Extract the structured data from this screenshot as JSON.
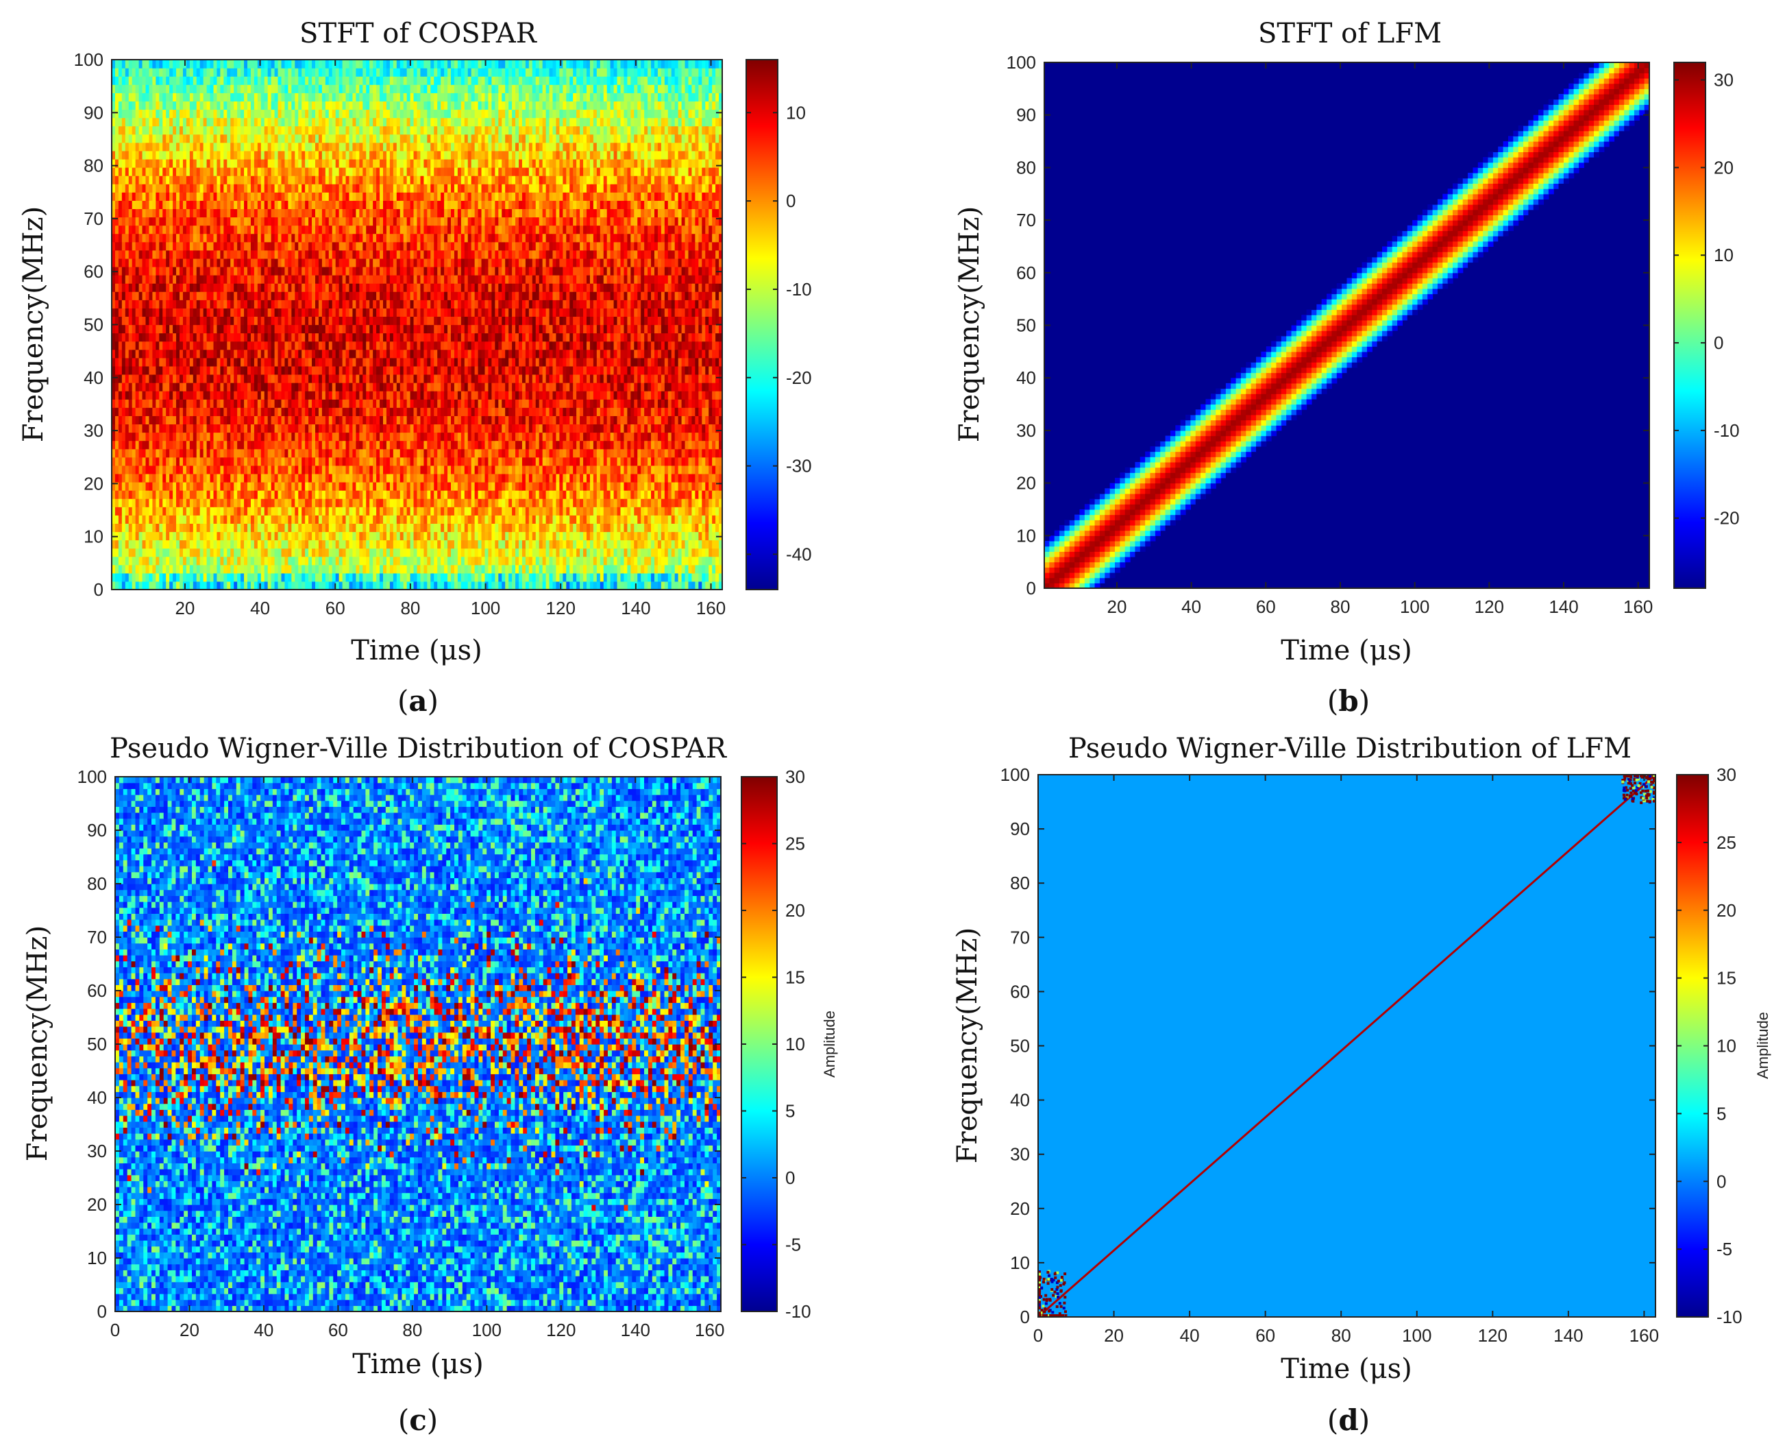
{
  "figure": {
    "panels": [
      "(a)",
      "(b)",
      "(c)",
      "(d)"
    ],
    "panel_letters": [
      "a",
      "b",
      "c",
      "d"
    ]
  },
  "chart_data": [
    {
      "id": "a",
      "type": "heatmap",
      "title": "STFT of COSPAR",
      "xlabel": "Time (μs)",
      "ylabel": "Frequency(MHz)",
      "xlim": [
        0.5,
        163
      ],
      "ylim": [
        0,
        100
      ],
      "xticks": [
        20,
        40,
        60,
        80,
        100,
        120,
        140,
        160
      ],
      "yticks": [
        0,
        10,
        20,
        30,
        40,
        50,
        60,
        70,
        80,
        90,
        100
      ],
      "colorbar": {
        "min": -44,
        "max": 16,
        "ticks": [
          -40,
          -30,
          -20,
          -10,
          0,
          10
        ],
        "label": ""
      },
      "pattern": "noise band centered near 45 MHz, ~10 dB peak, falling to ~-20 dB at 0 and 100 MHz"
    },
    {
      "id": "b",
      "type": "heatmap",
      "title": "STFT of LFM",
      "xlabel": "Time (μs)",
      "ylabel": "Frequency(MHz)",
      "xlim": [
        0.5,
        163
      ],
      "ylim": [
        0,
        100
      ],
      "xticks": [
        20,
        40,
        60,
        80,
        100,
        120,
        140,
        160
      ],
      "yticks": [
        0,
        10,
        20,
        30,
        40,
        50,
        60,
        70,
        80,
        90,
        100
      ],
      "colorbar": {
        "min": -28,
        "max": 32,
        "ticks": [
          -20,
          -10,
          0,
          10,
          20,
          30
        ],
        "label": ""
      },
      "pattern": "linear chirp from 0 MHz at t=0 to 100 MHz at t=163 μs, peak ~30 dB, background -28 dB"
    },
    {
      "id": "c",
      "type": "heatmap",
      "title": "Pseudo Wigner-Ville Distribution of COSPAR",
      "xlabel": "Time (μs)",
      "ylabel": "Frequency(MHz)",
      "xlim": [
        0,
        163
      ],
      "ylim": [
        0,
        100
      ],
      "xticks": [
        0,
        20,
        40,
        60,
        80,
        100,
        120,
        140,
        160
      ],
      "yticks": [
        0,
        10,
        20,
        30,
        40,
        50,
        60,
        70,
        80,
        90,
        100
      ],
      "colorbar": {
        "min": -10,
        "max": 30,
        "ticks": [
          -10,
          -5,
          0,
          5,
          10,
          15,
          20,
          25,
          30
        ],
        "label": "Amplitude"
      },
      "pattern": "speckled texture around 0 amplitude with high-amplitude clusters at 35-65 MHz"
    },
    {
      "id": "d",
      "type": "heatmap",
      "title": "Pseudo Wigner-Ville Distribution of LFM",
      "xlabel": "Time (μs)",
      "ylabel": "Frequency(MHz)",
      "xlim": [
        0,
        163
      ],
      "ylim": [
        0,
        100
      ],
      "xticks": [
        0,
        20,
        40,
        60,
        80,
        100,
        120,
        140,
        160
      ],
      "yticks": [
        0,
        10,
        20,
        30,
        40,
        50,
        60,
        70,
        80,
        90,
        100
      ],
      "colorbar": {
        "min": -10,
        "max": 30,
        "ticks": [
          -10,
          -5,
          0,
          5,
          10,
          15,
          20,
          25,
          30
        ],
        "label": "Amplitude"
      },
      "pattern": "thin diagonal line from (0,0) to (163,100) at ~30 amplitude, background ~0, edge clusters at corners"
    }
  ]
}
